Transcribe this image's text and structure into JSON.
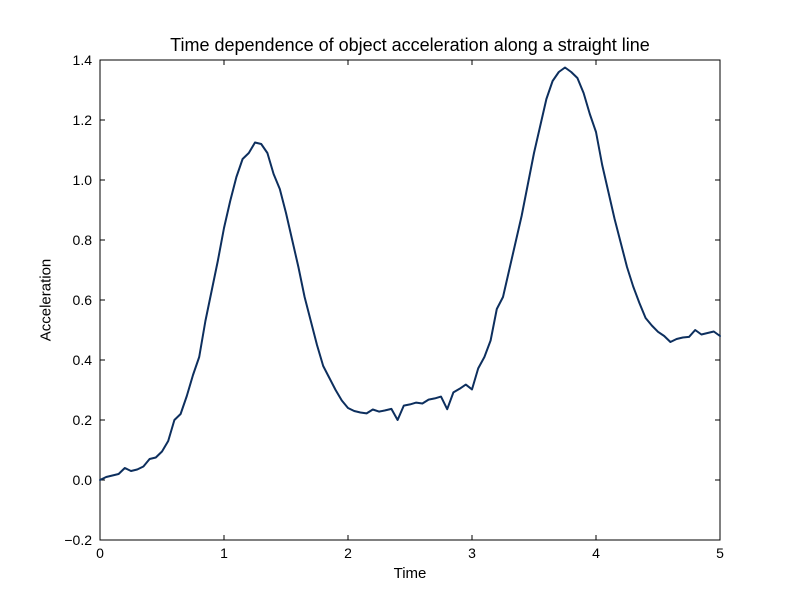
{
  "chart_data": {
    "type": "line",
    "title": "Time dependence of object acceleration along a straight line",
    "xlabel": "Time",
    "ylabel": "Acceleration",
    "xlim": [
      0,
      5
    ],
    "ylim": [
      -0.2,
      1.4
    ],
    "xticks": [
      0,
      1,
      2,
      3,
      4,
      5
    ],
    "xtick_labels": [
      "0",
      "1",
      "2",
      "3",
      "4",
      "5"
    ],
    "yticks": [
      -0.2,
      0.0,
      0.2,
      0.4,
      0.6,
      0.8,
      1.0,
      1.2,
      1.4
    ],
    "ytick_labels": [
      "−0.2",
      "0.0",
      "0.2",
      "0.4",
      "0.6",
      "0.8",
      "1.0",
      "1.2",
      "1.4"
    ],
    "grid": false,
    "legend": "none",
    "line_color": "#0d2f5e",
    "series": [
      {
        "x": [
          0,
          0.05,
          0.1,
          0.15,
          0.2,
          0.25,
          0.3,
          0.35,
          0.4,
          0.45,
          0.5,
          0.55,
          0.6,
          0.65,
          0.7,
          0.75,
          0.8,
          0.85,
          0.9,
          0.95,
          1.0,
          1.05,
          1.1,
          1.15,
          1.2,
          1.25,
          1.3,
          1.35,
          1.4,
          1.45,
          1.5,
          1.55,
          1.6,
          1.65,
          1.7,
          1.75,
          1.8,
          1.85,
          1.9,
          1.95,
          2.0,
          2.05,
          2.1,
          2.15,
          2.2,
          2.25,
          2.3,
          2.35,
          2.4,
          2.45,
          2.5,
          2.55,
          2.6,
          2.65,
          2.7,
          2.75,
          2.8,
          2.85,
          2.9,
          2.95,
          3.0,
          3.05,
          3.1,
          3.15,
          3.2,
          3.25,
          3.3,
          3.35,
          3.4,
          3.45,
          3.5,
          3.55,
          3.6,
          3.65,
          3.7,
          3.75,
          3.8,
          3.85,
          3.9,
          3.95,
          4.0,
          4.05,
          4.1,
          4.15,
          4.2,
          4.25,
          4.3,
          4.35,
          4.4,
          4.45,
          4.5,
          4.55,
          4.6,
          4.65,
          4.7,
          4.75,
          4.8,
          4.85,
          4.9,
          4.95,
          5.0
        ],
        "y": [
          0.0,
          0.01,
          0.015,
          0.02,
          0.04,
          0.03,
          0.035,
          0.045,
          0.07,
          0.075,
          0.095,
          0.13,
          0.2,
          0.22,
          0.28,
          0.35,
          0.41,
          0.53,
          0.63,
          0.73,
          0.84,
          0.93,
          1.01,
          1.07,
          1.09,
          1.125,
          1.12,
          1.09,
          1.02,
          0.97,
          0.89,
          0.8,
          0.71,
          0.61,
          0.53,
          0.45,
          0.38,
          0.34,
          0.3,
          0.265,
          0.24,
          0.23,
          0.225,
          0.222,
          0.235,
          0.228,
          0.232,
          0.237,
          0.2,
          0.248,
          0.252,
          0.258,
          0.255,
          0.268,
          0.272,
          0.278,
          0.236,
          0.292,
          0.304,
          0.318,
          0.302,
          0.372,
          0.41,
          0.465,
          0.57,
          0.61,
          0.7,
          0.79,
          0.88,
          0.985,
          1.09,
          1.18,
          1.27,
          1.33,
          1.36,
          1.375,
          1.36,
          1.34,
          1.29,
          1.22,
          1.16,
          1.05,
          0.96,
          0.87,
          0.79,
          0.71,
          0.645,
          0.59,
          0.54,
          0.515,
          0.494,
          0.48,
          0.46,
          0.47,
          0.475,
          0.477,
          0.5,
          0.485,
          0.49,
          0.495,
          0.48
        ]
      }
    ]
  }
}
